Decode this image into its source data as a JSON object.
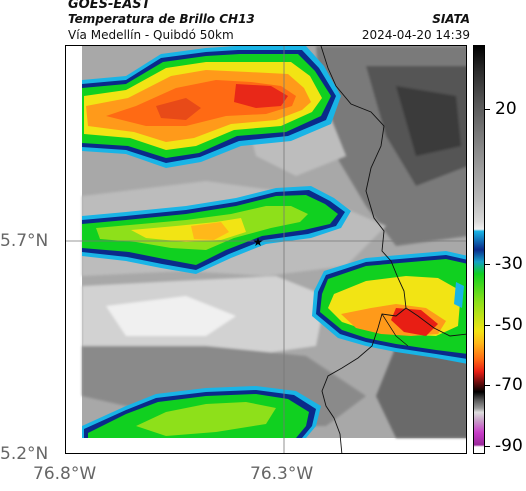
{
  "header": {
    "satellite": "GOES-EAST",
    "product": "Temperatura de Brillo CH13",
    "route": "Vía Medellín - Quibdó 50km",
    "agency": "SIATA",
    "timestamp": "2024-04-20 14:39"
  },
  "axes": {
    "latitude_labels": [
      "5.7°N",
      "5.2°N"
    ],
    "longitude_labels": [
      "76.8°W",
      "76.3°W"
    ]
  },
  "colorbar": {
    "labels": [
      "20",
      "-30",
      "-50",
      "-70",
      "-90"
    ],
    "colors": {
      "warm_gray_top": "#111111",
      "mid_gray": "#9a9a9a",
      "cyan": "#19b4e6",
      "blue": "#0a2a8a",
      "green": "#10d020",
      "yellow": "#f2e414",
      "orange": "#ff7a1a",
      "red": "#e81e14",
      "black": "#000000",
      "magenta": "#c83cc8"
    }
  },
  "map": {
    "marker": "★"
  }
}
